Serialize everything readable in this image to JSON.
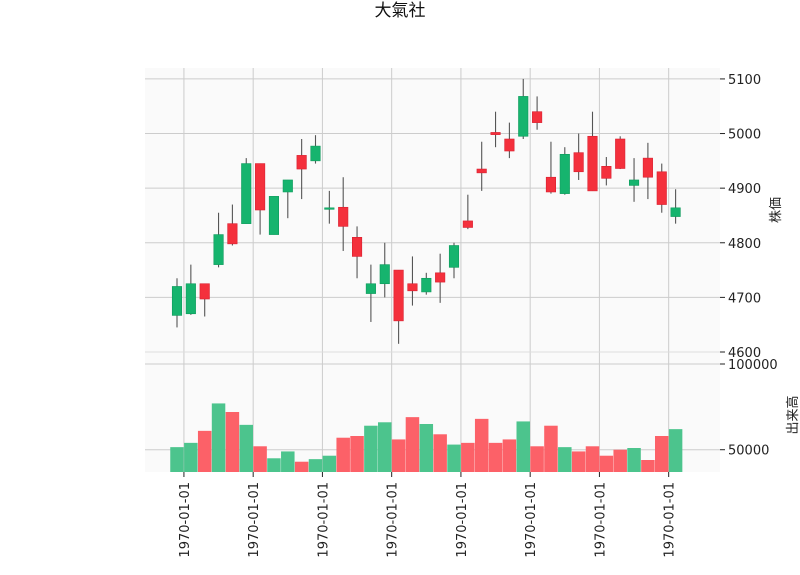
{
  "chart_data": {
    "type": "candlestick",
    "title": "大氣社",
    "price_axis": {
      "label": "株価",
      "ticks": [
        4600,
        4700,
        4800,
        4900,
        5000,
        5100
      ],
      "tick_labels": [
        "4600",
        "4700",
        "4800",
        "4900",
        "5000",
        "5100"
      ],
      "ylim": [
        4600,
        5120
      ]
    },
    "volume_axis": {
      "label": "出来高",
      "ticks": [
        50000,
        100000
      ],
      "tick_labels": [
        "50000",
        "100000"
      ],
      "ylim": [
        37000,
        107000
      ]
    },
    "x_tick_labels": [
      "1970-01-01",
      "1970-01-01",
      "1970-01-01",
      "1970-01-01",
      "1970-01-01",
      "1970-01-01",
      "1970-01-01",
      "1970-01-01"
    ],
    "x_tick_positions": [
      0.5,
      5.5,
      10.5,
      15.5,
      20.5,
      25.5,
      30.5,
      35.5
    ],
    "grid": true,
    "colors": {
      "up": "#16b46e",
      "down": "#f4303c",
      "vol_up": "#4cc48d",
      "vol_down": "#fc6168",
      "panel_bg": "#fafafa",
      "grid": "#cccccc"
    },
    "candles": [
      {
        "o": 4667,
        "h": 4735,
        "l": 4645,
        "c": 4720,
        "v": 51500
      },
      {
        "o": 4670,
        "h": 4760,
        "l": 4668,
        "c": 4725,
        "v": 54000
      },
      {
        "o": 4725,
        "h": 4725,
        "l": 4665,
        "c": 4697,
        "v": 61000
      },
      {
        "o": 4760,
        "h": 4855,
        "l": 4755,
        "c": 4815,
        "v": 77000
      },
      {
        "o": 4835,
        "h": 4870,
        "l": 4795,
        "c": 4798,
        "v": 72000
      },
      {
        "o": 4835,
        "h": 4955,
        "l": 4835,
        "c": 4945,
        "v": 64500
      },
      {
        "o": 4945,
        "h": 4945,
        "l": 4815,
        "c": 4860,
        "v": 52000
      },
      {
        "o": 4815,
        "h": 4885,
        "l": 4815,
        "c": 4885,
        "v": 45000
      },
      {
        "o": 4893,
        "h": 4915,
        "l": 4845,
        "c": 4915,
        "v": 49000
      },
      {
        "o": 4960,
        "h": 4990,
        "l": 4880,
        "c": 4935,
        "v": 43000
      },
      {
        "o": 4950,
        "h": 4997,
        "l": 4945,
        "c": 4977,
        "v": 44500
      },
      {
        "o": 4862,
        "h": 4895,
        "l": 4835,
        "c": 4864,
        "v": 46500
      },
      {
        "o": 4865,
        "h": 4920,
        "l": 4785,
        "c": 4830,
        "v": 57000
      },
      {
        "o": 4810,
        "h": 4830,
        "l": 4735,
        "c": 4775,
        "v": 58000
      },
      {
        "o": 4707,
        "h": 4760,
        "l": 4655,
        "c": 4725,
        "v": 64000
      },
      {
        "o": 4725,
        "h": 4800,
        "l": 4700,
        "c": 4760,
        "v": 66000
      },
      {
        "o": 4750,
        "h": 4750,
        "l": 4615,
        "c": 4657,
        "v": 56000
      },
      {
        "o": 4725,
        "h": 4775,
        "l": 4685,
        "c": 4712,
        "v": 69000
      },
      {
        "o": 4710,
        "h": 4745,
        "l": 4705,
        "c": 4735,
        "v": 65000
      },
      {
        "o": 4745,
        "h": 4780,
        "l": 4690,
        "c": 4728,
        "v": 59000
      },
      {
        "o": 4755,
        "h": 4800,
        "l": 4735,
        "c": 4795,
        "v": 53000
      },
      {
        "o": 4840,
        "h": 4888,
        "l": 4825,
        "c": 4828,
        "v": 54000
      },
      {
        "o": 4935,
        "h": 4985,
        "l": 4895,
        "c": 4928,
        "v": 68000
      },
      {
        "o": 5002,
        "h": 5040,
        "l": 4975,
        "c": 4998,
        "v": 54000
      },
      {
        "o": 4990,
        "h": 5020,
        "l": 4955,
        "c": 4968,
        "v": 56000
      },
      {
        "o": 4995,
        "h": 5100,
        "l": 4990,
        "c": 5068,
        "v": 66500
      },
      {
        "o": 5040,
        "h": 5068,
        "l": 5007,
        "c": 5020,
        "v": 52000
      },
      {
        "o": 4920,
        "h": 4985,
        "l": 4890,
        "c": 4893,
        "v": 64000
      },
      {
        "o": 4890,
        "h": 4975,
        "l": 4888,
        "c": 4962,
        "v": 51500
      },
      {
        "o": 4965,
        "h": 5000,
        "l": 4915,
        "c": 4930,
        "v": 49000
      },
      {
        "o": 4995,
        "h": 5040,
        "l": 4895,
        "c": 4895,
        "v": 52000
      },
      {
        "o": 4940,
        "h": 4957,
        "l": 4905,
        "c": 4918,
        "v": 46500
      },
      {
        "o": 4990,
        "h": 4995,
        "l": 4935,
        "c": 4936,
        "v": 50000
      },
      {
        "o": 4905,
        "h": 4955,
        "l": 4875,
        "c": 4915,
        "v": 51000
      },
      {
        "o": 4955,
        "h": 4983,
        "l": 4880,
        "c": 4920,
        "v": 44000
      },
      {
        "o": 4930,
        "h": 4945,
        "l": 4855,
        "c": 4870,
        "v": 58000
      },
      {
        "o": 4848,
        "h": 4898,
        "l": 4835,
        "c": 4864,
        "v": 62000
      }
    ]
  }
}
